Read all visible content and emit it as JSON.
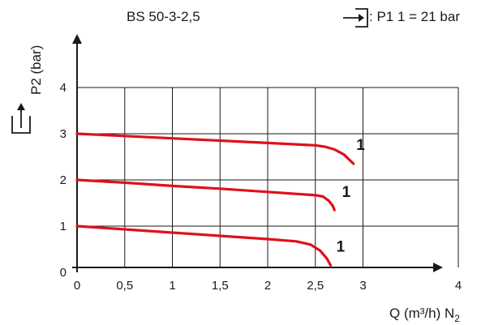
{
  "chart_data": {
    "type": "line",
    "title": "BS 50-3-2,5",
    "inlet_label": ":  P1   1 = 21 bar",
    "ylabel": "P2 (bar)",
    "xlabel": "Q (m³/h) N",
    "xlabel_subscript": "2",
    "xlim": [
      0,
      4
    ],
    "ylim": [
      0,
      4
    ],
    "x_ticks": [
      {
        "value": 0,
        "label": "0"
      },
      {
        "value": 0.5,
        "label": "0,5"
      },
      {
        "value": 1,
        "label": "1"
      },
      {
        "value": 1.5,
        "label": "1,5"
      },
      {
        "value": 2,
        "label": "2"
      },
      {
        "value": 2.5,
        "label": "2,5"
      },
      {
        "value": 3,
        "label": "3"
      },
      {
        "value": 4,
        "label": "4"
      }
    ],
    "y_ticks": [
      {
        "value": 0,
        "label": "0"
      },
      {
        "value": 1,
        "label": "1"
      },
      {
        "value": 2,
        "label": "2"
      },
      {
        "value": 3,
        "label": "3"
      },
      {
        "value": 4,
        "label": "4"
      }
    ],
    "grid": true,
    "line_color": "#e0101a",
    "series": [
      {
        "label": "1",
        "points": [
          [
            0,
            3.0
          ],
          [
            0.5,
            2.95
          ],
          [
            1,
            2.9
          ],
          [
            1.5,
            2.85
          ],
          [
            2,
            2.8
          ],
          [
            2.5,
            2.75
          ],
          [
            2.6,
            2.72
          ],
          [
            2.7,
            2.66
          ],
          [
            2.8,
            2.55
          ],
          [
            2.9,
            2.35
          ]
        ],
        "label_at": [
          2.93,
          2.65
        ]
      },
      {
        "label": "1",
        "points": [
          [
            0,
            2.0
          ],
          [
            0.5,
            1.94
          ],
          [
            1,
            1.87
          ],
          [
            1.5,
            1.81
          ],
          [
            2,
            1.74
          ],
          [
            2.5,
            1.67
          ],
          [
            2.58,
            1.64
          ],
          [
            2.64,
            1.55
          ],
          [
            2.68,
            1.45
          ],
          [
            2.7,
            1.35
          ]
        ],
        "label_at": [
          2.78,
          1.63
        ]
      },
      {
        "label": "1",
        "points": [
          [
            0,
            1.0
          ],
          [
            0.5,
            0.93
          ],
          [
            1,
            0.86
          ],
          [
            1.5,
            0.79
          ],
          [
            2,
            0.72
          ],
          [
            2.3,
            0.67
          ],
          [
            2.45,
            0.6
          ],
          [
            2.55,
            0.47
          ],
          [
            2.62,
            0.3
          ],
          [
            2.66,
            0.15
          ]
        ],
        "label_at": [
          2.72,
          0.45
        ]
      }
    ]
  }
}
